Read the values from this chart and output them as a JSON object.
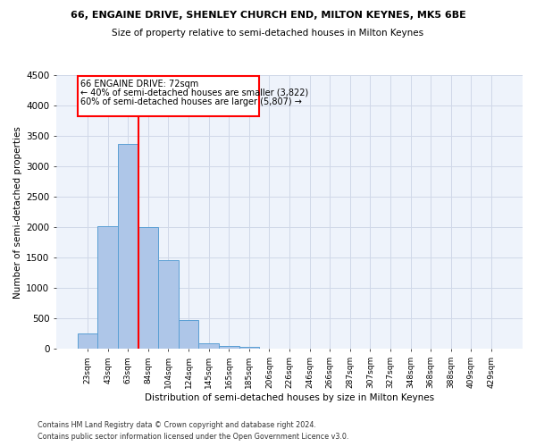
{
  "title": "66, ENGAINE DRIVE, SHENLEY CHURCH END, MILTON KEYNES, MK5 6BE",
  "subtitle": "Size of property relative to semi-detached houses in Milton Keynes",
  "xlabel": "Distribution of semi-detached houses by size in Milton Keynes",
  "ylabel": "Number of semi-detached properties",
  "footer_line1": "Contains HM Land Registry data © Crown copyright and database right 2024.",
  "footer_line2": "Contains public sector information licensed under the Open Government Licence v3.0.",
  "bar_labels": [
    "23sqm",
    "43sqm",
    "63sqm",
    "84sqm",
    "104sqm",
    "124sqm",
    "145sqm",
    "165sqm",
    "185sqm",
    "206sqm",
    "226sqm",
    "246sqm",
    "266sqm",
    "287sqm",
    "307sqm",
    "327sqm",
    "348sqm",
    "368sqm",
    "388sqm",
    "409sqm",
    "429sqm"
  ],
  "bar_values": [
    250,
    2020,
    3370,
    2010,
    1460,
    480,
    100,
    55,
    40,
    0,
    0,
    0,
    0,
    0,
    0,
    0,
    0,
    0,
    0,
    0,
    0
  ],
  "bar_color": "#aec6e8",
  "bar_edge_color": "#5a9fd4",
  "grid_color": "#d0d8e8",
  "background_color": "#eef3fb",
  "vline_color": "red",
  "pct_smaller": 40,
  "num_smaller": "3,822",
  "pct_larger": 60,
  "num_larger": "5,807",
  "annotation_label": "66 ENGAINE DRIVE: 72sqm",
  "ylim": [
    0,
    4500
  ],
  "yticks": [
    0,
    500,
    1000,
    1500,
    2000,
    2500,
    3000,
    3500,
    4000,
    4500
  ]
}
